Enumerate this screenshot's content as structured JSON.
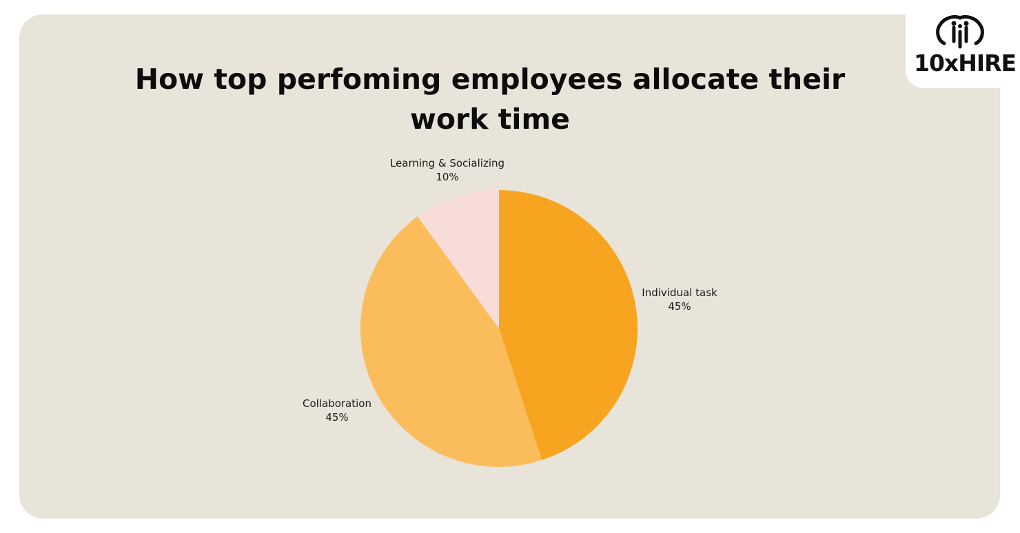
{
  "brand": {
    "logo_text": "10xHIRE",
    "logo_icon": "brain-circuit-icon"
  },
  "colors": {
    "card_background": "#e8e4d9",
    "page_background": "#ffffff"
  },
  "chart_data": {
    "type": "pie",
    "title": "How top perfoming employees allocate their work time",
    "slices": [
      {
        "label": "Individual task",
        "value": 45,
        "value_label": "45%",
        "color": "#f7a521"
      },
      {
        "label": "Collaboration",
        "value": 45,
        "value_label": "45%",
        "color": "#fbbd5b"
      },
      {
        "label": "Learning & Socializing",
        "value": 10,
        "value_label": "10%",
        "color": "#f8dcd7"
      }
    ],
    "start_angle": "12 o'clock",
    "direction": "clockwise",
    "legend": "none",
    "data_labels": "outside"
  }
}
